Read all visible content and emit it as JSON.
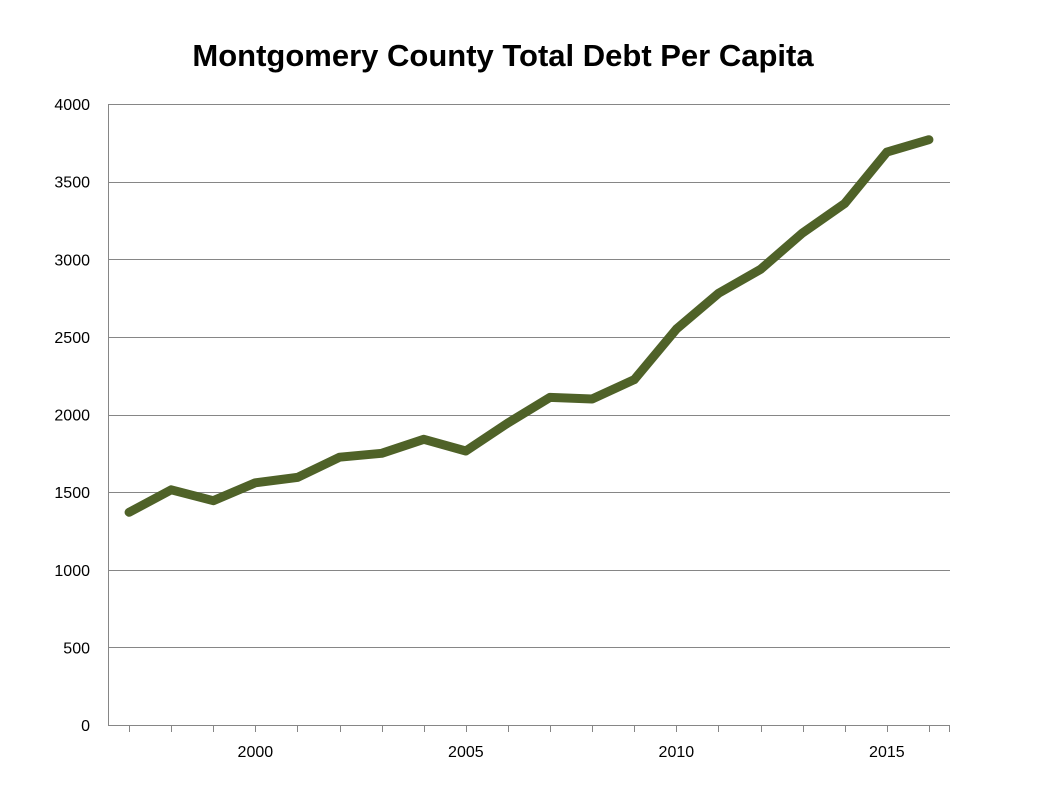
{
  "chart_data": {
    "type": "line",
    "title": "Montgomery County Total Debt Per Capita",
    "xlabel": "",
    "ylabel": "",
    "ylim": [
      0,
      4000
    ],
    "xlim": [
      1996.5,
      2016.5
    ],
    "y_ticks": [
      0,
      500,
      1000,
      1500,
      2000,
      2500,
      3000,
      3500,
      4000
    ],
    "x_ticks": [
      2000,
      2005,
      2010,
      2015
    ],
    "grid": "horizontal",
    "line_color": "#4f6228",
    "series": [
      {
        "x": [
          1997,
          1998,
          1999,
          2000,
          2001,
          2002,
          2003,
          2004,
          2005,
          2006,
          2007,
          2008,
          2009,
          2010,
          2011,
          2012,
          2013,
          2014,
          2015,
          2016
        ],
        "values": [
          1370,
          1515,
          1445,
          1560,
          1595,
          1725,
          1750,
          1840,
          1765,
          1945,
          2110,
          2100,
          2225,
          2550,
          2780,
          2935,
          3170,
          3360,
          3690,
          3770
        ]
      }
    ]
  }
}
